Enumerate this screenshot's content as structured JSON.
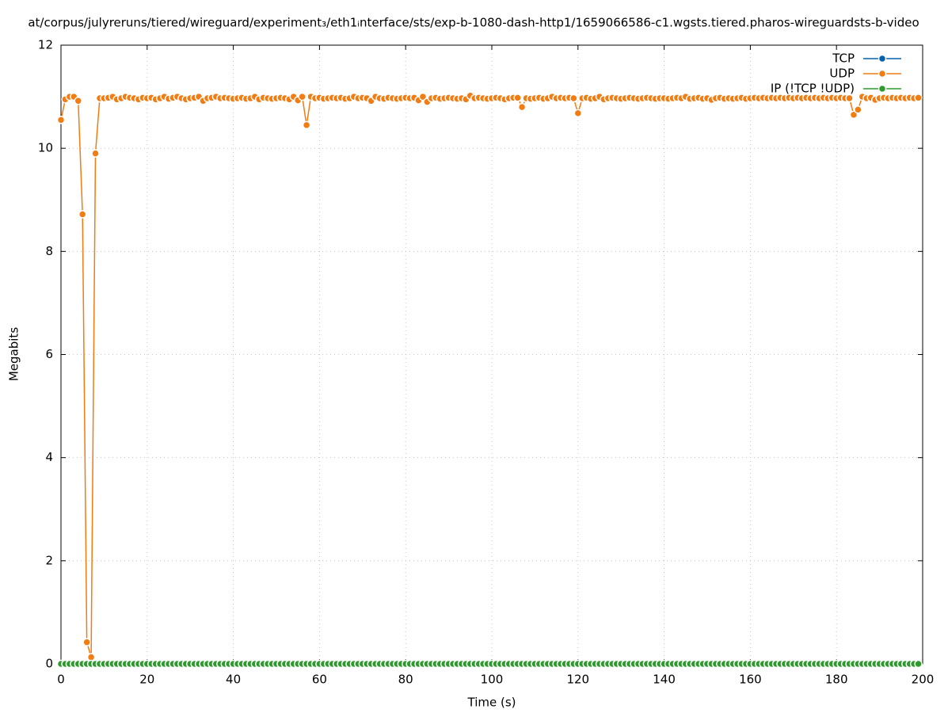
{
  "chart_data": {
    "type": "line",
    "title": "at/corpus/julyreruns/tiered/wireguard/experiment₃/eth1ᵢnterface/sts/exp-b-1080-dash-http1/1659066586-c1.wgsts.tiered.pharos-wireguardsts-b-video",
    "x_label": "Time (s)",
    "y_label": "Megabits",
    "xlim": [
      0,
      200
    ],
    "xticks": [
      0,
      20,
      40,
      60,
      80,
      100,
      120,
      140,
      160,
      180,
      200
    ],
    "ylim": [
      0,
      12
    ],
    "yticks": [
      0,
      2,
      4,
      6,
      8,
      10,
      12
    ],
    "grid": true,
    "legend": "top-right",
    "x": [
      0,
      1,
      2,
      3,
      4,
      5,
      6,
      7,
      8,
      9,
      10,
      11,
      12,
      13,
      14,
      15,
      16,
      17,
      18,
      19,
      20,
      21,
      22,
      23,
      24,
      25,
      26,
      27,
      28,
      29,
      30,
      31,
      32,
      33,
      34,
      35,
      36,
      37,
      38,
      39,
      40,
      41,
      42,
      43,
      44,
      45,
      46,
      47,
      48,
      49,
      50,
      51,
      52,
      53,
      54,
      55,
      56,
      57,
      58,
      59,
      60,
      61,
      62,
      63,
      64,
      65,
      66,
      67,
      68,
      69,
      70,
      71,
      72,
      73,
      74,
      75,
      76,
      77,
      78,
      79,
      80,
      81,
      82,
      83,
      84,
      85,
      86,
      87,
      88,
      89,
      90,
      91,
      92,
      93,
      94,
      95,
      96,
      97,
      98,
      99,
      100,
      101,
      102,
      103,
      104,
      105,
      106,
      107,
      108,
      109,
      110,
      111,
      112,
      113,
      114,
      115,
      116,
      117,
      118,
      119,
      120,
      121,
      122,
      123,
      124,
      125,
      126,
      127,
      128,
      129,
      130,
      131,
      132,
      133,
      134,
      135,
      136,
      137,
      138,
      139,
      140,
      141,
      142,
      143,
      144,
      145,
      146,
      147,
      148,
      149,
      150,
      151,
      152,
      153,
      154,
      155,
      156,
      157,
      158,
      159,
      160,
      161,
      162,
      163,
      164,
      165,
      166,
      167,
      168,
      169,
      170,
      171,
      172,
      173,
      174,
      175,
      176,
      177,
      178,
      179,
      180,
      181,
      182,
      183,
      184,
      185,
      186,
      187,
      188,
      189,
      190,
      191,
      192,
      193,
      194,
      195,
      196,
      197,
      198,
      199
    ],
    "series": [
      {
        "name": "TCP",
        "color": "#0060ad",
        "values": [
          0,
          0,
          0,
          0,
          0,
          0,
          0,
          0,
          0,
          0,
          0,
          0,
          0,
          0,
          0,
          0,
          0,
          0,
          0,
          0,
          0,
          0,
          0,
          0,
          0,
          0,
          0,
          0,
          0,
          0,
          0,
          0,
          0,
          0,
          0,
          0,
          0,
          0,
          0,
          0,
          0,
          0,
          0,
          0,
          0,
          0,
          0,
          0,
          0,
          0,
          0,
          0,
          0,
          0,
          0,
          0,
          0,
          0,
          0,
          0,
          0,
          0,
          0,
          0,
          0,
          0,
          0,
          0,
          0,
          0,
          0,
          0,
          0,
          0,
          0,
          0,
          0,
          0,
          0,
          0,
          0,
          0,
          0,
          0,
          0,
          0,
          0,
          0,
          0,
          0,
          0,
          0,
          0,
          0,
          0,
          0,
          0,
          0,
          0,
          0,
          0,
          0,
          0,
          0,
          0,
          0,
          0,
          0,
          0,
          0,
          0,
          0,
          0,
          0,
          0,
          0,
          0,
          0,
          0,
          0,
          0,
          0,
          0,
          0,
          0,
          0,
          0,
          0,
          0,
          0,
          0,
          0,
          0,
          0,
          0,
          0,
          0,
          0,
          0,
          0,
          0,
          0,
          0,
          0,
          0,
          0,
          0,
          0,
          0,
          0,
          0,
          0,
          0,
          0,
          0,
          0,
          0,
          0,
          0,
          0,
          0,
          0,
          0,
          0,
          0,
          0,
          0,
          0,
          0,
          0,
          0,
          0,
          0,
          0,
          0,
          0,
          0,
          0,
          0,
          0,
          0,
          0,
          0,
          0,
          0,
          0,
          0,
          0,
          0,
          0,
          0,
          0,
          0,
          0,
          0,
          0,
          0,
          0,
          0,
          0
        ]
      },
      {
        "name": "UDP",
        "color": "#f07c12",
        "values": [
          10.55,
          10.95,
          11.0,
          11.0,
          10.92,
          8.72,
          0.42,
          0.13,
          9.9,
          10.97,
          10.97,
          10.98,
          11.0,
          10.95,
          10.97,
          11.0,
          10.98,
          10.97,
          10.95,
          10.98,
          10.97,
          10.98,
          10.95,
          10.97,
          11.0,
          10.96,
          10.98,
          11.0,
          10.97,
          10.95,
          10.97,
          10.98,
          11.0,
          10.92,
          10.97,
          10.98,
          11.0,
          10.97,
          10.98,
          10.97,
          10.96,
          10.97,
          10.98,
          10.96,
          10.97,
          11.0,
          10.95,
          10.98,
          10.97,
          10.96,
          10.97,
          10.98,
          10.97,
          10.95,
          11.0,
          10.93,
          11.0,
          10.45,
          11.0,
          10.97,
          10.98,
          10.96,
          10.97,
          10.98,
          10.97,
          10.98,
          10.96,
          10.97,
          11.0,
          10.97,
          10.98,
          10.97,
          10.92,
          11.0,
          10.97,
          10.96,
          10.98,
          10.97,
          10.96,
          10.97,
          10.98,
          10.97,
          10.98,
          10.93,
          11.0,
          10.9,
          10.97,
          10.98,
          10.96,
          10.97,
          10.98,
          10.97,
          10.96,
          10.97,
          10.95,
          11.02,
          10.97,
          10.98,
          10.97,
          10.96,
          10.97,
          10.98,
          10.97,
          10.95,
          10.97,
          10.98,
          10.98,
          10.8,
          10.97,
          10.96,
          10.97,
          10.98,
          10.96,
          10.97,
          11.0,
          10.97,
          10.98,
          10.97,
          10.98,
          10.97,
          10.68,
          10.97,
          10.98,
          10.96,
          10.97,
          11.0,
          10.95,
          10.97,
          10.98,
          10.97,
          10.96,
          10.97,
          10.98,
          10.97,
          10.96,
          10.97,
          10.98,
          10.97,
          10.96,
          10.97,
          10.97,
          10.96,
          10.97,
          10.98,
          10.97,
          11.0,
          10.96,
          10.97,
          10.98,
          10.96,
          10.97,
          10.94,
          10.97,
          10.98,
          10.96,
          10.97,
          10.96,
          10.97,
          10.98,
          10.96,
          10.97,
          10.98,
          10.97,
          10.98,
          10.97,
          10.98,
          10.97,
          10.98,
          10.97,
          10.98,
          10.97,
          10.98,
          10.97,
          10.98,
          10.97,
          10.98,
          10.97,
          10.98,
          10.97,
          10.98,
          10.97,
          10.98,
          10.97,
          10.97,
          10.65,
          10.75,
          11.0,
          10.97,
          10.98,
          10.94,
          10.97,
          10.98,
          10.97,
          10.98,
          10.97,
          10.98,
          10.97,
          10.98,
          10.97,
          10.98
        ]
      },
      {
        "name": "IP (!TCP  !UDP)",
        "color": "#2e9a2e",
        "values": [
          0,
          0,
          0,
          0,
          0,
          0,
          0,
          0,
          0,
          0,
          0,
          0,
          0,
          0,
          0,
          0,
          0,
          0,
          0,
          0,
          0,
          0,
          0,
          0,
          0,
          0,
          0,
          0,
          0,
          0,
          0,
          0,
          0,
          0,
          0,
          0,
          0,
          0,
          0,
          0,
          0,
          0,
          0,
          0,
          0,
          0,
          0,
          0,
          0,
          0,
          0,
          0,
          0,
          0,
          0,
          0,
          0,
          0,
          0,
          0,
          0,
          0,
          0,
          0,
          0,
          0,
          0,
          0,
          0,
          0,
          0,
          0,
          0,
          0,
          0,
          0,
          0,
          0,
          0,
          0,
          0,
          0,
          0,
          0,
          0,
          0,
          0,
          0,
          0,
          0,
          0,
          0,
          0,
          0,
          0,
          0,
          0,
          0,
          0,
          0,
          0,
          0,
          0,
          0,
          0,
          0,
          0,
          0,
          0,
          0,
          0,
          0,
          0,
          0,
          0,
          0,
          0,
          0,
          0,
          0,
          0,
          0,
          0,
          0,
          0,
          0,
          0,
          0,
          0,
          0,
          0,
          0,
          0,
          0,
          0,
          0,
          0,
          0,
          0,
          0,
          0,
          0,
          0,
          0,
          0,
          0,
          0,
          0,
          0,
          0,
          0,
          0,
          0,
          0,
          0,
          0,
          0,
          0,
          0,
          0,
          0,
          0,
          0,
          0,
          0,
          0,
          0,
          0,
          0,
          0,
          0,
          0,
          0,
          0,
          0,
          0,
          0,
          0,
          0,
          0,
          0,
          0,
          0,
          0,
          0,
          0,
          0,
          0,
          0,
          0,
          0,
          0,
          0,
          0,
          0,
          0,
          0,
          0,
          0,
          0
        ]
      }
    ]
  }
}
